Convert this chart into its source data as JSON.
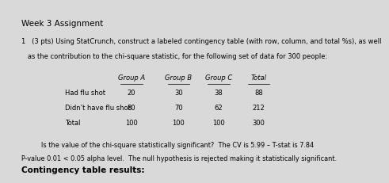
{
  "title": "Week 3 Assignment",
  "question_num": "1",
  "question_pts": "(3 pts)",
  "question_text": "Using StatCrunch, construct a labeled contingency table (with row, column, and total %s), as well\nas the contribution to the chi-square statistic, for the following set of data for 300 people:",
  "table_headers": [
    "Group A",
    "Group B",
    "Group C",
    "Total"
  ],
  "row_labels": [
    "Had flu shot",
    "Didn’t have flu shot",
    "Total"
  ],
  "table_data": [
    [
      20,
      30,
      38,
      88
    ],
    [
      80,
      70,
      62,
      212
    ],
    [
      100,
      100,
      100,
      300
    ]
  ],
  "sig_line": "Is the value of the chi-square statistically significant?  The CV is 5.99 – T-stat is 7.84",
  "pvalue_line": "P-value 0.01 < 0.05 alpha level.  The null hypothesis is rejected making it statistically significant.",
  "contingency_label": "Contingency table results:",
  "bg_color": "#d9d9d9",
  "text_color": "#000000",
  "header_underline": true
}
